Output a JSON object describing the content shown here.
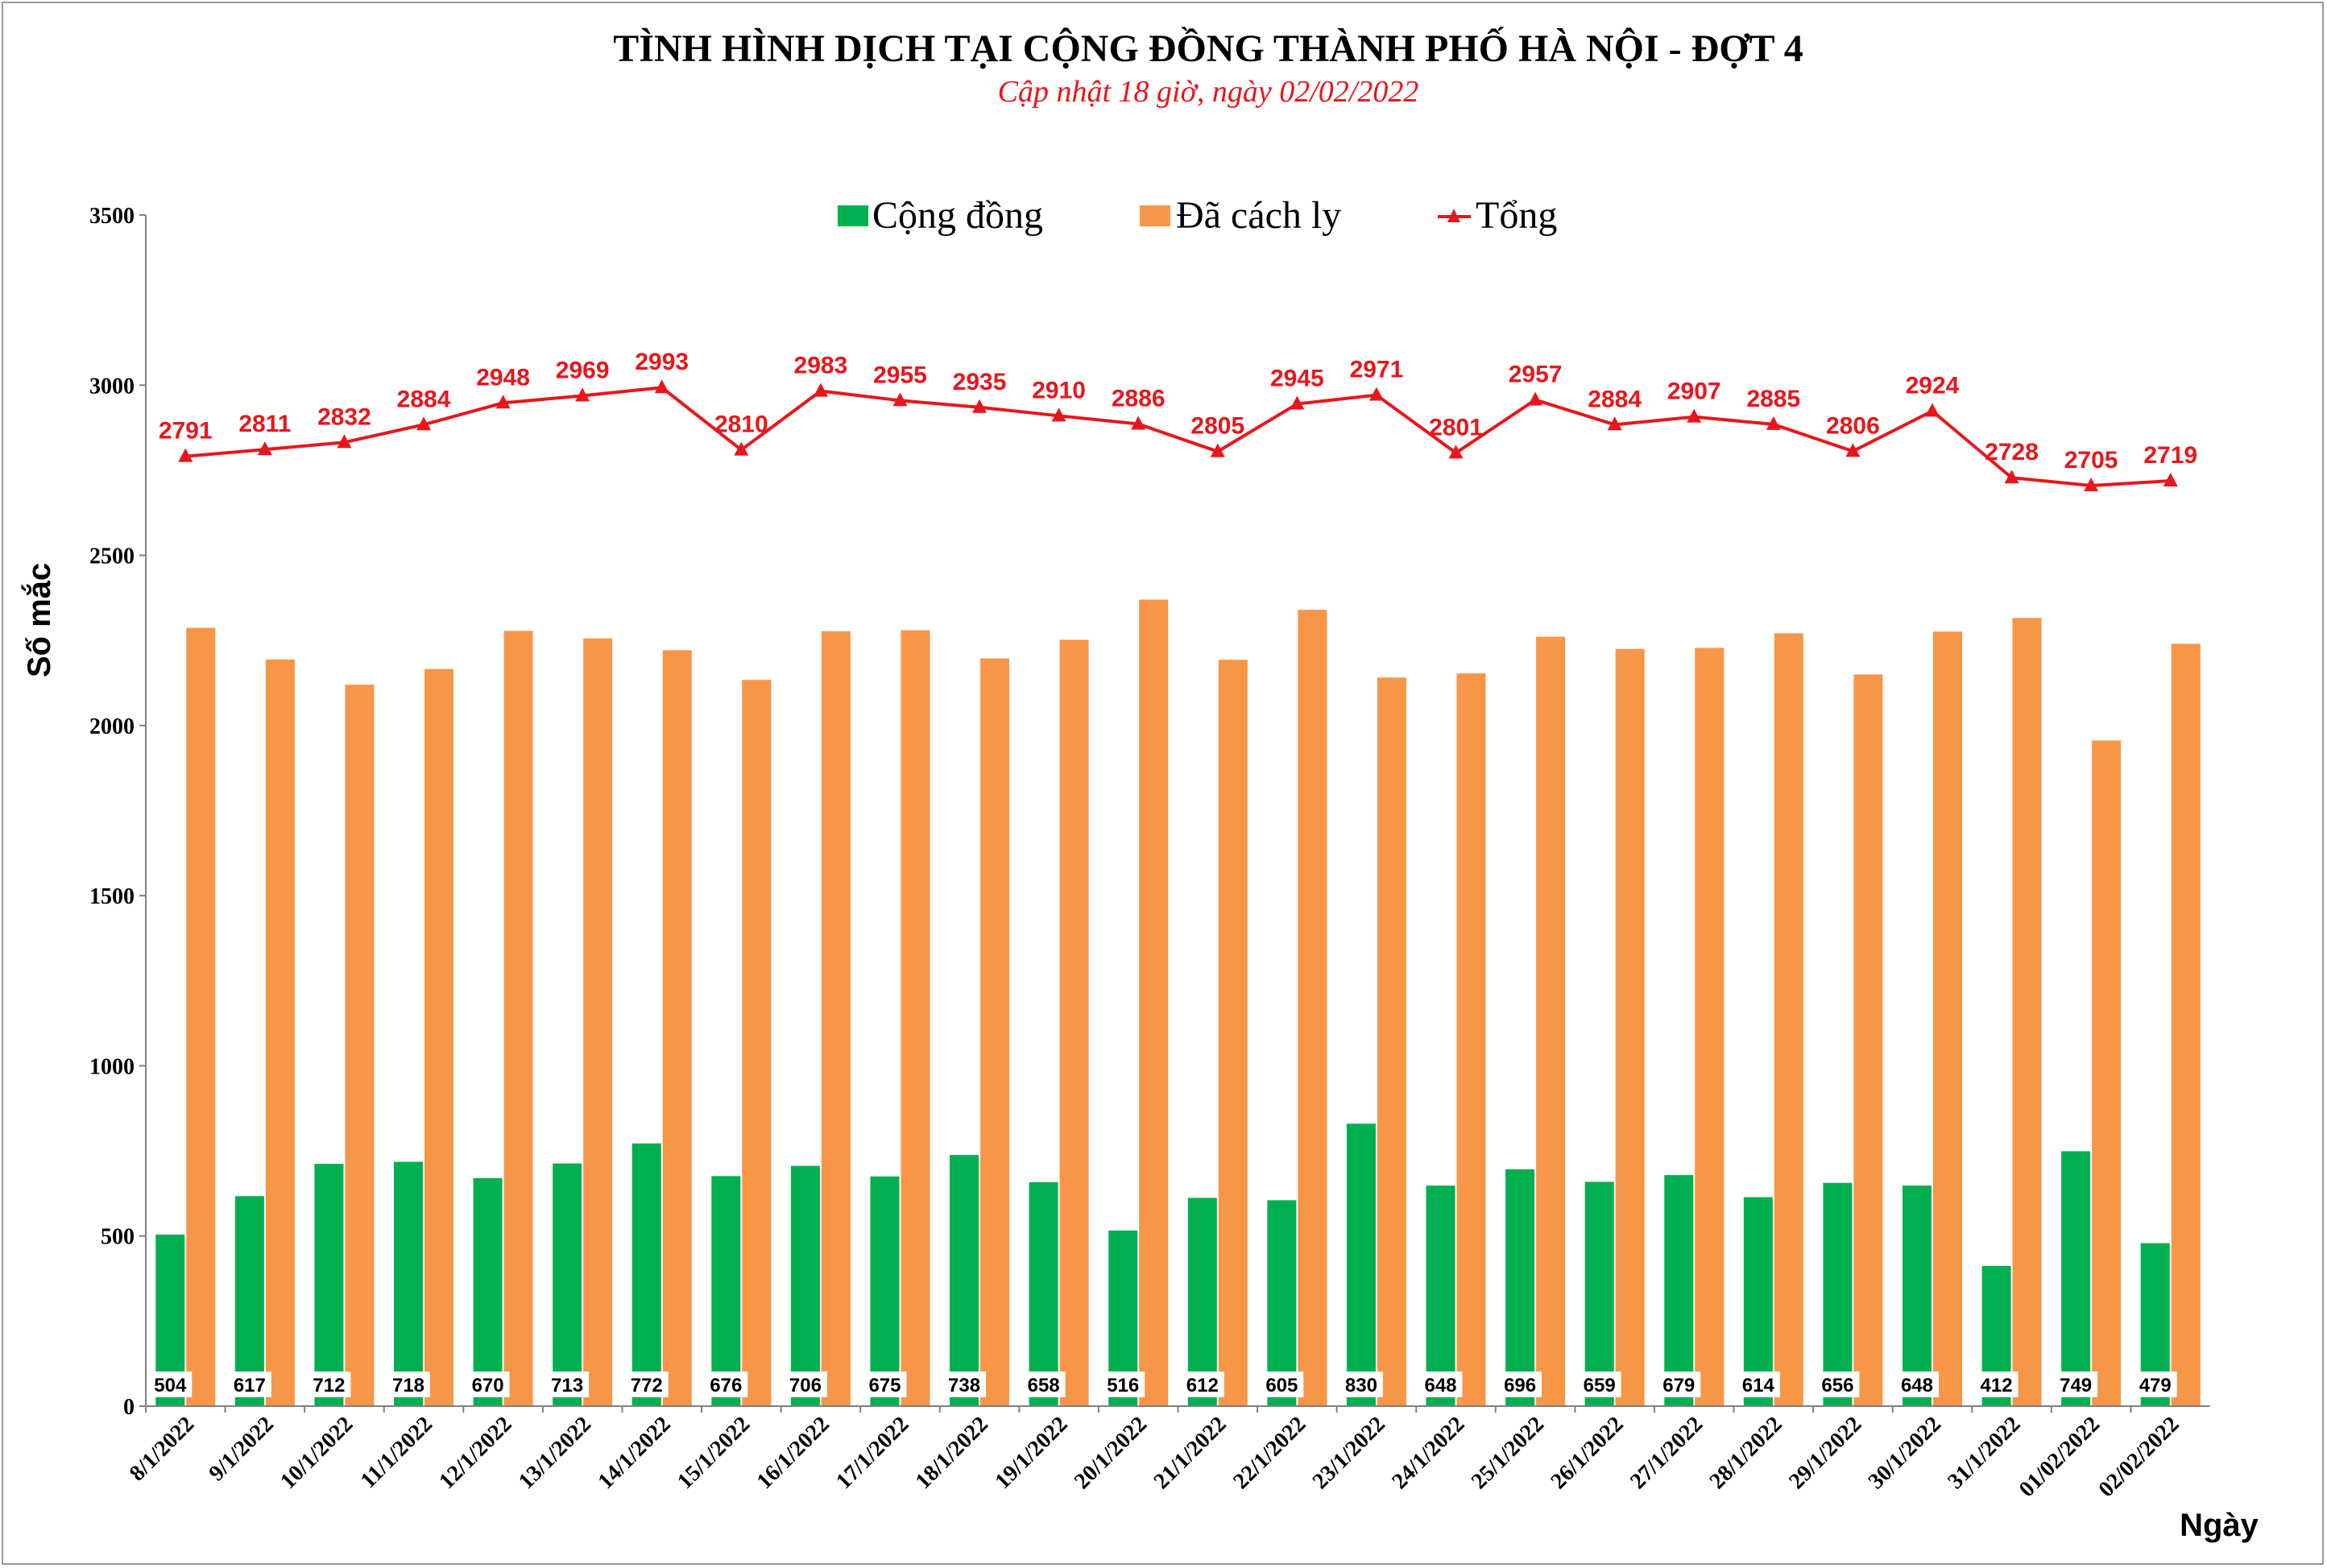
{
  "chart_data": {
    "type": "bar",
    "title": "TÌNH HÌNH DỊCH TẠI CỘNG ĐỒNG THÀNH PHỐ HÀ NỘI - ĐỢT 4",
    "subtitle": "Cập nhật 18 giờ, ngày  02/02/2022",
    "xlabel": "Ngày",
    "ylabel": "Số mắc",
    "ylim": [
      0,
      3500
    ],
    "yticks": [
      "0",
      "500",
      "1000",
      "1500",
      "2000",
      "2500",
      "3000",
      "3500"
    ],
    "legend_position": "top",
    "categories": [
      "8/1/2022",
      "9/1/2022",
      "10/1/2022",
      "11/1/2022",
      "12/1/2022",
      "13/1/2022",
      "14/1/2022",
      "15/1/2022",
      "16/1/2022",
      "17/1/2022",
      "18/1/2022",
      "19/1/2022",
      "20/1/2022",
      "21/1/2022",
      "22/1/2022",
      "23/1/2022",
      "24/1/2022",
      "25/1/2022",
      "26/1/2022",
      "27/1/2022",
      "28/1/2022",
      "29/1/2022",
      "30/1/2022",
      "31/1/2022",
      "01/02/2022",
      "02/02/2022"
    ],
    "series": [
      {
        "name": "Cộng đồng",
        "type": "bar",
        "color": "#00b050",
        "values": [
          504,
          617,
          712,
          718,
          670,
          713,
          772,
          676,
          706,
          675,
          738,
          658,
          516,
          612,
          605,
          830,
          648,
          696,
          659,
          679,
          614,
          656,
          648,
          412,
          749,
          479
        ]
      },
      {
        "name": "Đã cách ly",
        "type": "bar",
        "color": "#f79646",
        "values": [
          2287,
          2194,
          2120,
          2166,
          2278,
          2256,
          2221,
          2134,
          2277,
          2280,
          2197,
          2252,
          2370,
          2193,
          2340,
          2141,
          2153,
          2261,
          2225,
          2228,
          2271,
          2150,
          2276,
          2316,
          1956,
          2240
        ]
      },
      {
        "name": "Tổng",
        "type": "line",
        "color": "#e8161b",
        "marker": "triangle",
        "values": [
          2791,
          2811,
          2832,
          2884,
          2948,
          2969,
          2993,
          2810,
          2983,
          2955,
          2935,
          2910,
          2886,
          2805,
          2945,
          2971,
          2801,
          2957,
          2884,
          2907,
          2885,
          2806,
          2924,
          2728,
          2705,
          2719
        ]
      }
    ]
  }
}
